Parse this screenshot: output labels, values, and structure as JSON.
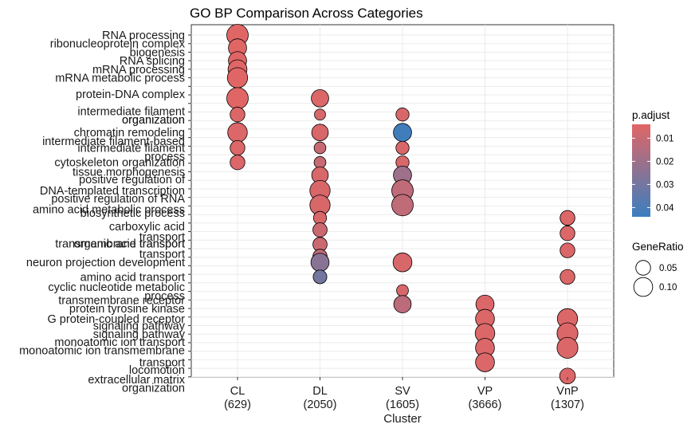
{
  "chart_data": {
    "type": "dotplot",
    "title": "GO BP Comparison Across Categories",
    "xlabel": "Cluster",
    "categories": [
      {
        "name": "CL",
        "count": "(629)"
      },
      {
        "name": "DL",
        "count": "(2050)"
      },
      {
        "name": "SV",
        "count": "(1605)"
      },
      {
        "name": "VP",
        "count": "(3666)"
      },
      {
        "name": "VnP",
        "count": "(1307)"
      }
    ],
    "y_labels": [
      "RNA processing",
      "ribonucleoprotein complex",
      "biogenesis",
      "RNA splicing",
      "mRNA processing",
      "mRNA metabolic process",
      "protein-DNA complex",
      "organization",
      "intermediate filament",
      "organization",
      "chromatin remodeling",
      "intermediate filament-based",
      "process",
      "intermediate filament",
      "cytoskeleton organization",
      "tissue morphogenesis",
      "positive regulation of",
      "DNA-templated transcription",
      "positive regulation of RNA",
      "amino acid metabolic process",
      "biosynthetic process",
      "carboxylic acid",
      "transport",
      "organic acid transport",
      "transmembrane transport",
      "transport",
      "neuron projection development",
      "amino acid transport",
      "cyclic nucleotide metabolic",
      "process",
      "transmembrane receptor",
      "protein tyrosine kinase",
      "G protein-coupled receptor",
      "signaling pathway",
      "signaling pathway",
      "monoatomic ion transport",
      "monoatomic ion transmembrane",
      "transport",
      "locomotion",
      "extracellular matrix",
      "organization"
    ],
    "points": [
      {
        "cluster": "CL",
        "term": "RNA processing",
        "gene_ratio": 0.14,
        "p_adjust": 0.004
      },
      {
        "cluster": "CL",
        "term": "ribonucleoprotein complex biogenesis",
        "gene_ratio": 0.09,
        "p_adjust": 0.004
      },
      {
        "cluster": "CL",
        "term": "RNA splicing",
        "gene_ratio": 0.09,
        "p_adjust": 0.004
      },
      {
        "cluster": "CL",
        "term": "mRNA processing",
        "gene_ratio": 0.1,
        "p_adjust": 0.004
      },
      {
        "cluster": "CL",
        "term": "mRNA metabolic process",
        "gene_ratio": 0.12,
        "p_adjust": 0.004
      },
      {
        "cluster": "CL",
        "term": "protein-DNA complex organization",
        "gene_ratio": 0.14,
        "p_adjust": 0.004
      },
      {
        "cluster": "CL",
        "term": "intermediate filament organization",
        "gene_ratio": 0.05,
        "p_adjust": 0.005
      },
      {
        "cluster": "CL",
        "term": "chromatin remodeling",
        "gene_ratio": 0.11,
        "p_adjust": 0.005
      },
      {
        "cluster": "CL",
        "term": "intermediate filament-based process",
        "gene_ratio": 0.05,
        "p_adjust": 0.005
      },
      {
        "cluster": "CL",
        "term": "intermediate filament cytoskeleton organization",
        "gene_ratio": 0.05,
        "p_adjust": 0.005
      },
      {
        "cluster": "DL",
        "term": "protein-DNA complex organization",
        "gene_ratio": 0.08,
        "p_adjust": 0.005
      },
      {
        "cluster": "DL",
        "term": "intermediate filament organization",
        "gene_ratio": 0.02,
        "p_adjust": 0.006
      },
      {
        "cluster": "DL",
        "term": "chromatin remodeling",
        "gene_ratio": 0.07,
        "p_adjust": 0.006
      },
      {
        "cluster": "DL",
        "term": "intermediate filament-based process",
        "gene_ratio": 0.025,
        "p_adjust": 0.01
      },
      {
        "cluster": "DL",
        "term": "intermediate filament cytoskeleton organization",
        "gene_ratio": 0.025,
        "p_adjust": 0.01
      },
      {
        "cluster": "DL",
        "term": "tissue morphogenesis",
        "gene_ratio": 0.07,
        "p_adjust": 0.006
      },
      {
        "cluster": "DL",
        "term": "positive regulation of DNA-templated transcription",
        "gene_ratio": 0.12,
        "p_adjust": 0.006
      },
      {
        "cluster": "DL",
        "term": "positive regulation of RNA biosynthetic process",
        "gene_ratio": 0.12,
        "p_adjust": 0.006
      },
      {
        "cluster": "DL",
        "term": "amino acid metabolic process",
        "gene_ratio": 0.035,
        "p_adjust": 0.006
      },
      {
        "cluster": "DL",
        "term": "carboxylic acid transport",
        "gene_ratio": 0.045,
        "p_adjust": 0.009
      },
      {
        "cluster": "DL",
        "term": "organic acid transport",
        "gene_ratio": 0.045,
        "p_adjust": 0.009
      },
      {
        "cluster": "DL",
        "term": "transmembrane transport",
        "gene_ratio": 0.045,
        "p_adjust": 0.012
      },
      {
        "cluster": "DL",
        "term": "neuron projection development",
        "gene_ratio": 0.09,
        "p_adjust": 0.025
      },
      {
        "cluster": "DL",
        "term": "amino acid transport",
        "gene_ratio": 0.04,
        "p_adjust": 0.03
      },
      {
        "cluster": "SV",
        "term": "intermediate filament organization",
        "gene_ratio": 0.035,
        "p_adjust": 0.006
      },
      {
        "cluster": "SV",
        "term": "chromatin remodeling",
        "gene_ratio": 0.09,
        "p_adjust": 0.042
      },
      {
        "cluster": "SV",
        "term": "intermediate filament-based process",
        "gene_ratio": 0.035,
        "p_adjust": 0.006
      },
      {
        "cluster": "SV",
        "term": "intermediate filament cytoskeleton organization",
        "gene_ratio": 0.035,
        "p_adjust": 0.006
      },
      {
        "cluster": "SV",
        "term": "tissue morphogenesis",
        "gene_ratio": 0.09,
        "p_adjust": 0.02
      },
      {
        "cluster": "SV",
        "term": "positive regulation of DNA-templated transcription",
        "gene_ratio": 0.14,
        "p_adjust": 0.012
      },
      {
        "cluster": "SV",
        "term": "positive regulation of RNA biosynthetic process",
        "gene_ratio": 0.14,
        "p_adjust": 0.012
      },
      {
        "cluster": "SV",
        "term": "neuron projection development",
        "gene_ratio": 0.1,
        "p_adjust": 0.006
      },
      {
        "cluster": "SV",
        "term": "cyclic nucleotide metabolic process",
        "gene_ratio": 0.025,
        "p_adjust": 0.006
      },
      {
        "cluster": "SV",
        "term": "transmembrane receptor protein tyrosine kinase",
        "gene_ratio": 0.08,
        "p_adjust": 0.013
      },
      {
        "cluster": "VP",
        "term": "transmembrane receptor protein tyrosine kinase",
        "gene_ratio": 0.09,
        "p_adjust": 0.005
      },
      {
        "cluster": "VP",
        "term": "G protein-coupled receptor signaling pathway",
        "gene_ratio": 0.1,
        "p_adjust": 0.005
      },
      {
        "cluster": "VP",
        "term": "monoatomic ion transport",
        "gene_ratio": 0.11,
        "p_adjust": 0.005
      },
      {
        "cluster": "VP",
        "term": "monoatomic ion transmembrane transport",
        "gene_ratio": 0.1,
        "p_adjust": 0.005
      },
      {
        "cluster": "VP",
        "term": "locomotion",
        "gene_ratio": 0.1,
        "p_adjust": 0.005
      },
      {
        "cluster": "VnP",
        "term": "amino acid metabolic process",
        "gene_ratio": 0.05,
        "p_adjust": 0.005
      },
      {
        "cluster": "VnP",
        "term": "carboxylic acid transport",
        "gene_ratio": 0.05,
        "p_adjust": 0.005
      },
      {
        "cluster": "VnP",
        "term": "organic acid transport",
        "gene_ratio": 0.05,
        "p_adjust": 0.005
      },
      {
        "cluster": "VnP",
        "term": "transmembrane transport",
        "gene_ratio": 0.05,
        "p_adjust": 0.005
      },
      {
        "cluster": "VnP",
        "term": "amino acid transport",
        "gene_ratio": 0.05,
        "p_adjust": 0.005
      },
      {
        "cluster": "VnP",
        "term": "G protein-coupled receptor signaling pathway",
        "gene_ratio": 0.12,
        "p_adjust": 0.005
      },
      {
        "cluster": "VnP",
        "term": "monoatomic ion transport",
        "gene_ratio": 0.13,
        "p_adjust": 0.005
      },
      {
        "cluster": "VnP",
        "term": "monoatomic ion transmembrane transport",
        "gene_ratio": 0.13,
        "p_adjust": 0.005
      },
      {
        "cluster": "VnP",
        "term": "extracellular matrix organization",
        "gene_ratio": 0.06,
        "p_adjust": 0.005
      }
    ],
    "color_legend": {
      "title": "p.adjust",
      "ticks": [
        "0.01",
        "0.02",
        "0.03",
        "0.04"
      ],
      "tick_values": [
        0.01,
        0.02,
        0.03,
        0.04
      ],
      "range": [
        0.004,
        0.044
      ],
      "low_color": "#e06666",
      "high_color": "#3a7ebf"
    },
    "size_legend": {
      "title": "GeneRatio",
      "entries": [
        "0.05",
        "0.10"
      ],
      "values": [
        0.05,
        0.1
      ]
    },
    "grid": true
  }
}
